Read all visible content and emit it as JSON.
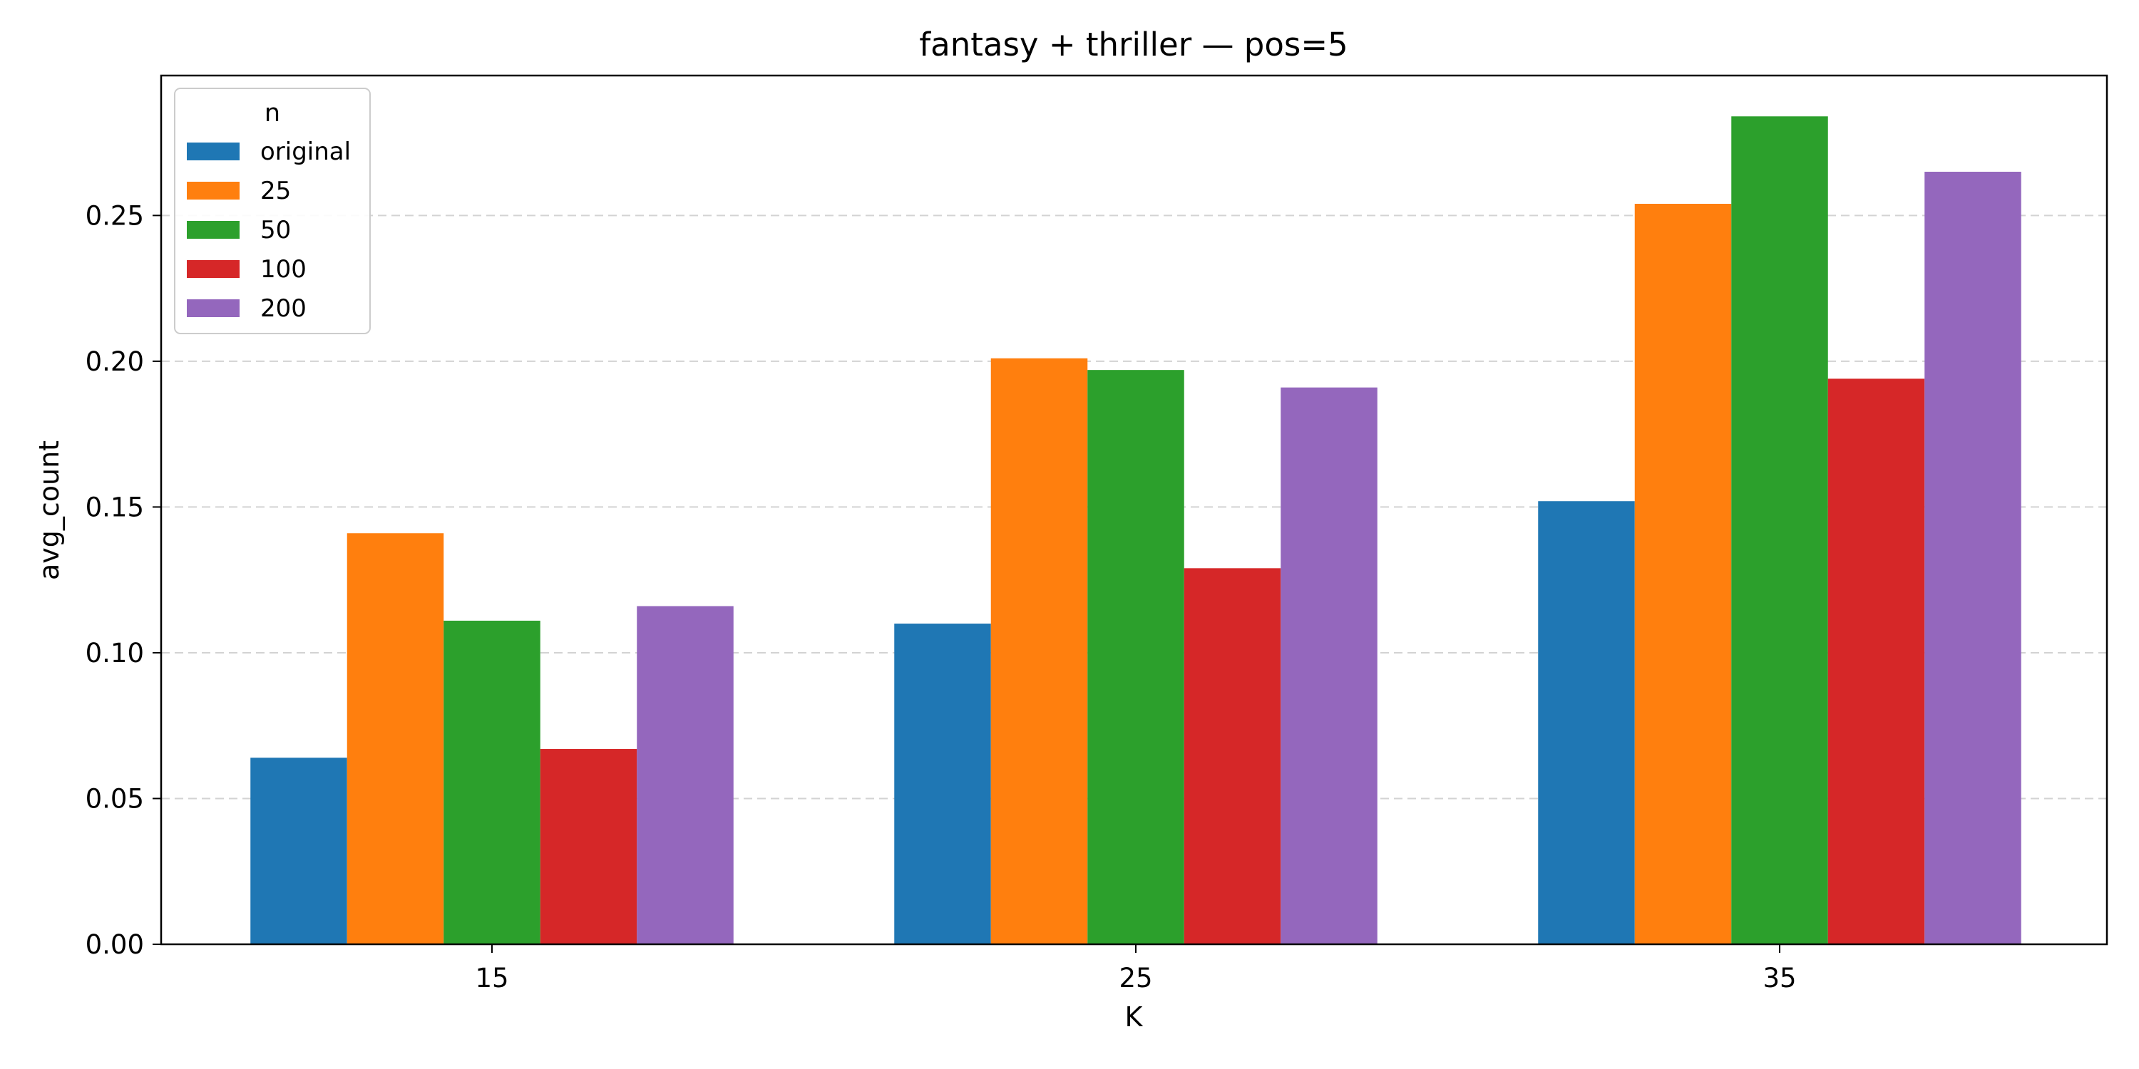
{
  "chart_data": {
    "type": "bar",
    "title": "fantasy + thriller — pos=5",
    "xlabel": "K",
    "ylabel": "avg_count",
    "categories": [
      "15",
      "25",
      "35"
    ],
    "ylim": [
      0,
      0.298
    ],
    "yticks": [
      "0.00",
      "0.05",
      "0.10",
      "0.15",
      "0.20",
      "0.25"
    ],
    "grid": "y-dashed",
    "legend": {
      "title": "n",
      "placement": "top-left"
    },
    "series": [
      {
        "name": "original",
        "color": "#1f77b4",
        "values": [
          0.064,
          0.11,
          0.152
        ]
      },
      {
        "name": "25",
        "color": "#ff7f0e",
        "values": [
          0.141,
          0.201,
          0.254
        ]
      },
      {
        "name": "50",
        "color": "#2ca02c",
        "values": [
          0.111,
          0.197,
          0.284
        ]
      },
      {
        "name": "100",
        "color": "#d62728",
        "values": [
          0.067,
          0.129,
          0.194
        ]
      },
      {
        "name": "200",
        "color": "#9467bd",
        "values": [
          0.116,
          0.191,
          0.265
        ]
      }
    ]
  }
}
